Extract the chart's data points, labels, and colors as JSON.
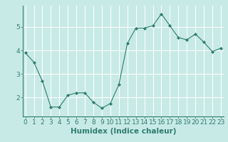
{
  "title": "",
  "xlabel": "Humidex (Indice chaleur)",
  "ylabel": "",
  "x_values": [
    0,
    1,
    2,
    3,
    4,
    5,
    6,
    7,
    8,
    9,
    10,
    11,
    12,
    13,
    14,
    15,
    16,
    17,
    18,
    19,
    20,
    21,
    22,
    23
  ],
  "y_values": [
    3.9,
    3.5,
    2.7,
    1.6,
    1.6,
    2.1,
    2.2,
    2.2,
    1.8,
    1.55,
    1.75,
    2.55,
    4.3,
    4.95,
    4.95,
    5.05,
    5.55,
    5.05,
    4.55,
    4.45,
    4.7,
    4.35,
    3.95,
    4.1
  ],
  "line_color": "#2d7d6e",
  "marker": "D",
  "marker_size": 2.0,
  "bg_color": "#c8eae6",
  "grid_color": "#ffffff",
  "ylim": [
    1.2,
    5.9
  ],
  "xlim": [
    -0.3,
    23.3
  ],
  "yticks": [
    2,
    3,
    4,
    5
  ],
  "xlabel_fontsize": 7.5,
  "tick_fontsize": 6.5
}
